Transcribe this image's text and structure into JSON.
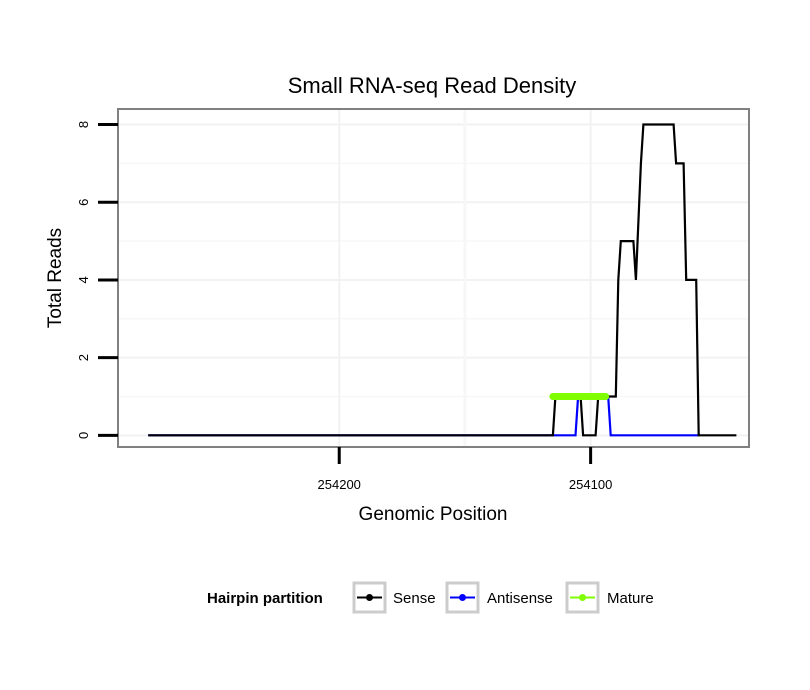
{
  "chart_data": {
    "type": "line",
    "title": "Small RNA-seq Read Density",
    "xlabel": "Genomic Position",
    "ylabel": "Total Reads",
    "xlim": [
      254288,
      254037
    ],
    "ylim": [
      -0.3,
      8.4
    ],
    "x_reversed": true,
    "x_ticks": [
      254200,
      254100
    ],
    "x_tick_labels": [
      "254200",
      "254100"
    ],
    "y_ticks": [
      0,
      2,
      4,
      6,
      8
    ],
    "y_tick_labels": [
      "0",
      "2",
      "4",
      "6",
      "8"
    ],
    "grid": true,
    "legend": {
      "title": "Hairpin partition",
      "position": "bottom",
      "entries": [
        "Sense",
        "Antisense",
        "Mature"
      ]
    },
    "series": [
      {
        "name": "Sense",
        "color": "#000000",
        "points": [
          [
            254276,
            0
          ],
          [
            254115,
            0
          ],
          [
            254114,
            1
          ],
          [
            254104,
            1
          ],
          [
            254103,
            0
          ],
          [
            254098,
            0
          ],
          [
            254097,
            1
          ],
          [
            254090,
            1
          ],
          [
            254089,
            4
          ],
          [
            254088,
            5
          ],
          [
            254083,
            5
          ],
          [
            254082,
            4
          ],
          [
            254080,
            7
          ],
          [
            254079,
            8
          ],
          [
            254067,
            8
          ],
          [
            254066,
            7
          ],
          [
            254063,
            7
          ],
          [
            254062,
            4
          ],
          [
            254058,
            4
          ],
          [
            254057,
            0
          ],
          [
            254042,
            0
          ]
        ]
      },
      {
        "name": "Antisense",
        "color": "#0000ff",
        "points": [
          [
            254276,
            0
          ],
          [
            254106,
            0
          ],
          [
            254105,
            1
          ],
          [
            254093,
            1
          ],
          [
            254092,
            0
          ],
          [
            254057,
            0
          ]
        ]
      },
      {
        "name": "Mature",
        "color": "#7fff00",
        "points": [
          [
            254115,
            1
          ],
          [
            254094,
            1
          ]
        ]
      }
    ]
  }
}
